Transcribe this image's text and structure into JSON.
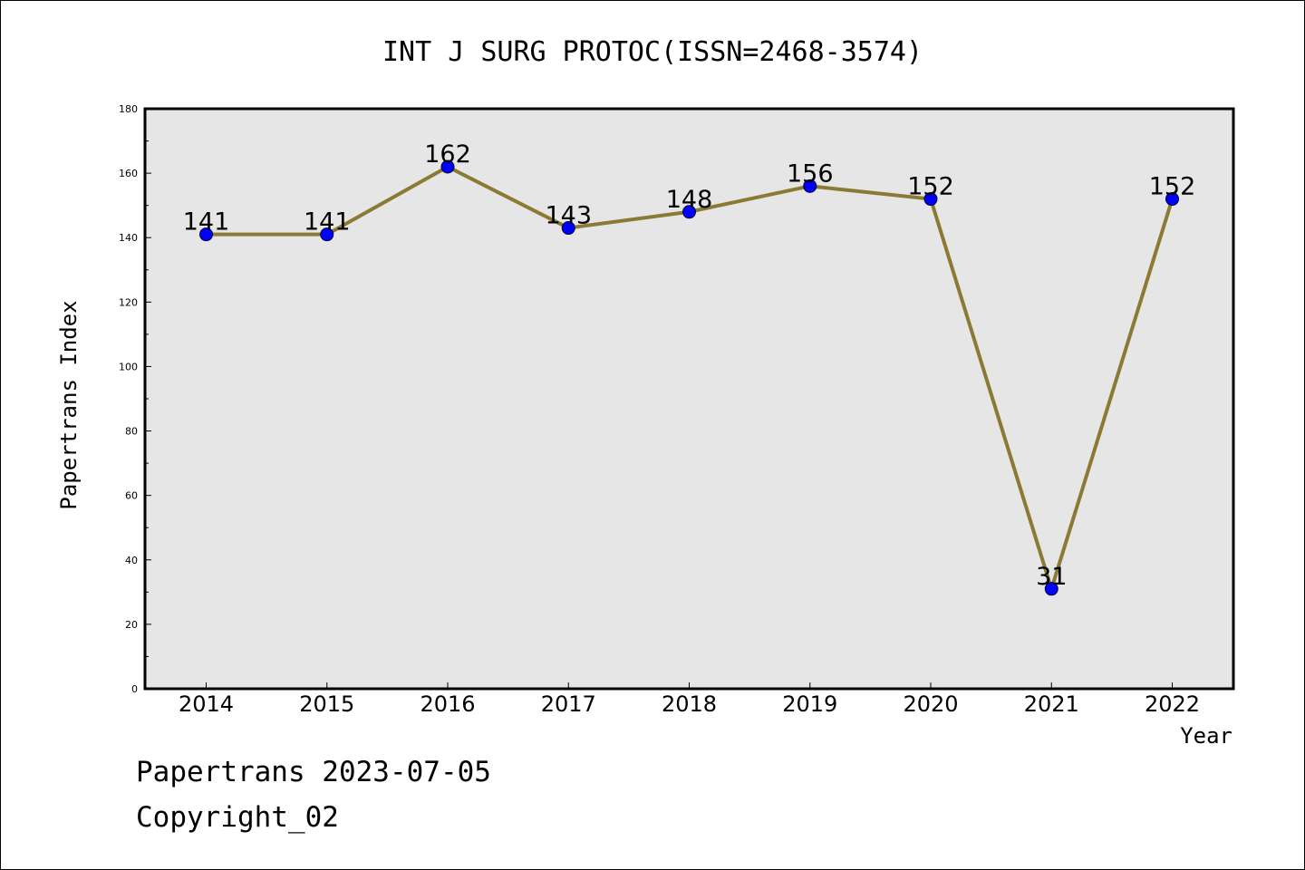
{
  "chart_data": {
    "type": "line",
    "title": "INT J SURG PROTOC(ISSN=2468-3574)",
    "xlabel": "Year",
    "ylabel": "Papertrans Index",
    "categories": [
      "2014",
      "2015",
      "2016",
      "2017",
      "2018",
      "2019",
      "2020",
      "2021",
      "2022"
    ],
    "series": [
      {
        "values": [
          141,
          141,
          162,
          143,
          148,
          156,
          152,
          31,
          152
        ]
      }
    ],
    "data_labels": [
      "141",
      "141",
      "162",
      "143",
      "148",
      "156",
      "152",
      "31",
      "152"
    ],
    "ylim": [
      0,
      180
    ],
    "yticks": [
      "0",
      "20",
      "40",
      "60",
      "80",
      "100",
      "120",
      "140",
      "160",
      "180"
    ],
    "grid": false,
    "legend": "none",
    "colors": {
      "line": "#8b7a34",
      "marker": "#0000ff",
      "plot_background": "#e6e6e6"
    }
  },
  "footer": {
    "line1": "Papertrans 2023-07-05",
    "line2": "Copyright_02"
  }
}
